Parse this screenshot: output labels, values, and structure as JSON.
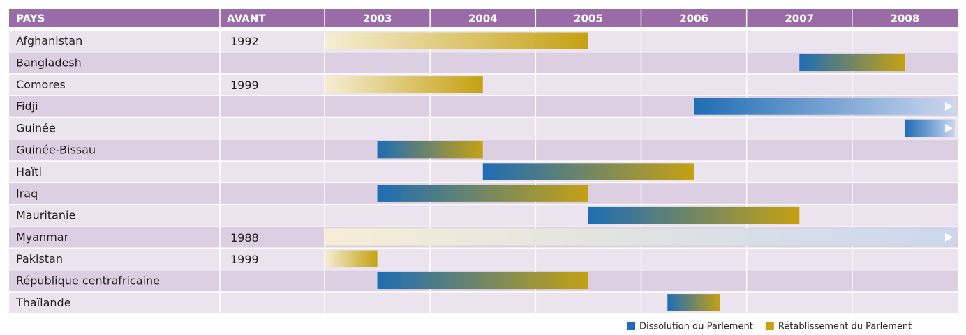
{
  "chart_data": {
    "type": "timeline",
    "headers": [
      "PAYS",
      "AVANT"
    ],
    "categories": [
      "Afghanistan",
      "Bangladesh",
      "Comores",
      "Fidji",
      "Guinée",
      "Guinée-Bissau",
      "Haïti",
      "Iraq",
      "Mauritanie",
      "Myanmar",
      "Pakistan",
      "République centrafricaine",
      "Thaïlande"
    ],
    "before": [
      1992,
      null,
      1999,
      null,
      null,
      null,
      null,
      null,
      null,
      1988,
      1999,
      null,
      null
    ],
    "start": [
      null,
      2007.5,
      null,
      2006.5,
      2008.5,
      2003.5,
      2004.5,
      2003.5,
      2005.5,
      null,
      null,
      2003.5,
      2006.25
    ],
    "end": [
      2005.5,
      2008.5,
      2004.5,
      null,
      null,
      2004.5,
      2006.5,
      2005.5,
      2007.5,
      null,
      2003.5,
      2005.5,
      2006.75
    ],
    "xlim": [
      2003,
      2009
    ],
    "xticks": [
      2003,
      2004,
      2005,
      2006,
      2007,
      2008
    ],
    "series": [
      {
        "name": "Dissolution du Parlement",
        "color": "#1e6db4"
      },
      {
        "name": "Rétablissement du Parlement",
        "color": "#c5a113"
      }
    ]
  }
}
